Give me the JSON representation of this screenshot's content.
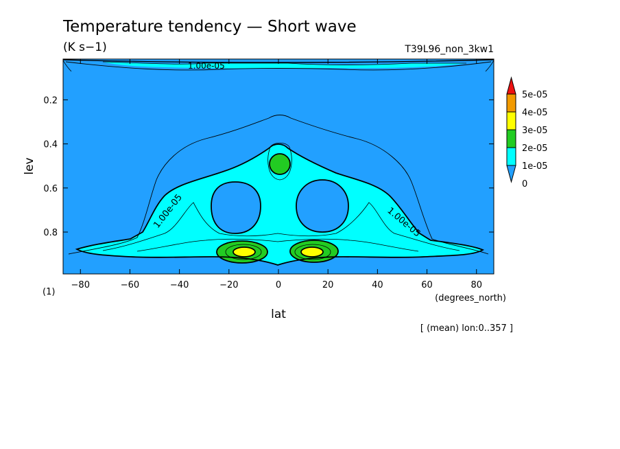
{
  "chart_data": {
    "type": "heatmap",
    "title": "Temperature tendency — Short wave",
    "units": "(K s−1)",
    "run_label": "T39L96_non_3kw1",
    "xlabel": "lat",
    "x_units": "(degrees_north)",
    "ylabel": "lev",
    "y_units": "(1)",
    "footer": "[ (mean) lon:0..357 ]",
    "xlim": [
      -87,
      87
    ],
    "ylim": [
      0.99,
      0.015
    ],
    "x_ticks": [
      -80,
      -60,
      -40,
      -20,
      0,
      20,
      40,
      60,
      80
    ],
    "x_tick_labels": [
      "−80",
      "−60",
      "−40",
      "−20",
      "0",
      "20",
      "40",
      "60",
      "80"
    ],
    "y_ticks": [
      0.2,
      0.4,
      0.6,
      0.8
    ],
    "y_tick_labels": [
      "0.2",
      "0.4",
      "0.6",
      "0.8"
    ],
    "legend": {
      "placement": "right",
      "levels": [
        "5e-05",
        "4e-05",
        "3e-05",
        "2e-05",
        "1e-05",
        "0"
      ],
      "colors": [
        "#ee1111",
        "#f29a00",
        "#ffff00",
        "#22cc22",
        "#00ffff",
        "#22a0ff"
      ]
    },
    "contour_labels": [
      "1.00e-05",
      "1.00e-05",
      "1.00e-05"
    ],
    "regions": [
      {
        "level": "1e-05",
        "desc": "broad arch",
        "lat_range": [
          -56,
          62
        ],
        "lev_range": [
          0.38,
          0.93
        ]
      },
      {
        "level": "2e-05",
        "desc": "upper equatorial cell",
        "lat": 0,
        "lev": 0.49
      },
      {
        "level": "2e-05",
        "desc": "lower cell south",
        "lat": -14,
        "lev": 0.9
      },
      {
        "level": "2e-05",
        "desc": "lower cell north",
        "lat": 14,
        "lev": 0.9
      },
      {
        "level": "3e-05",
        "desc": "maximum south",
        "lat": -14,
        "lev": 0.905
      },
      {
        "level": "3e-05",
        "desc": "maximum north",
        "lat": 13,
        "lev": 0.905
      }
    ]
  }
}
